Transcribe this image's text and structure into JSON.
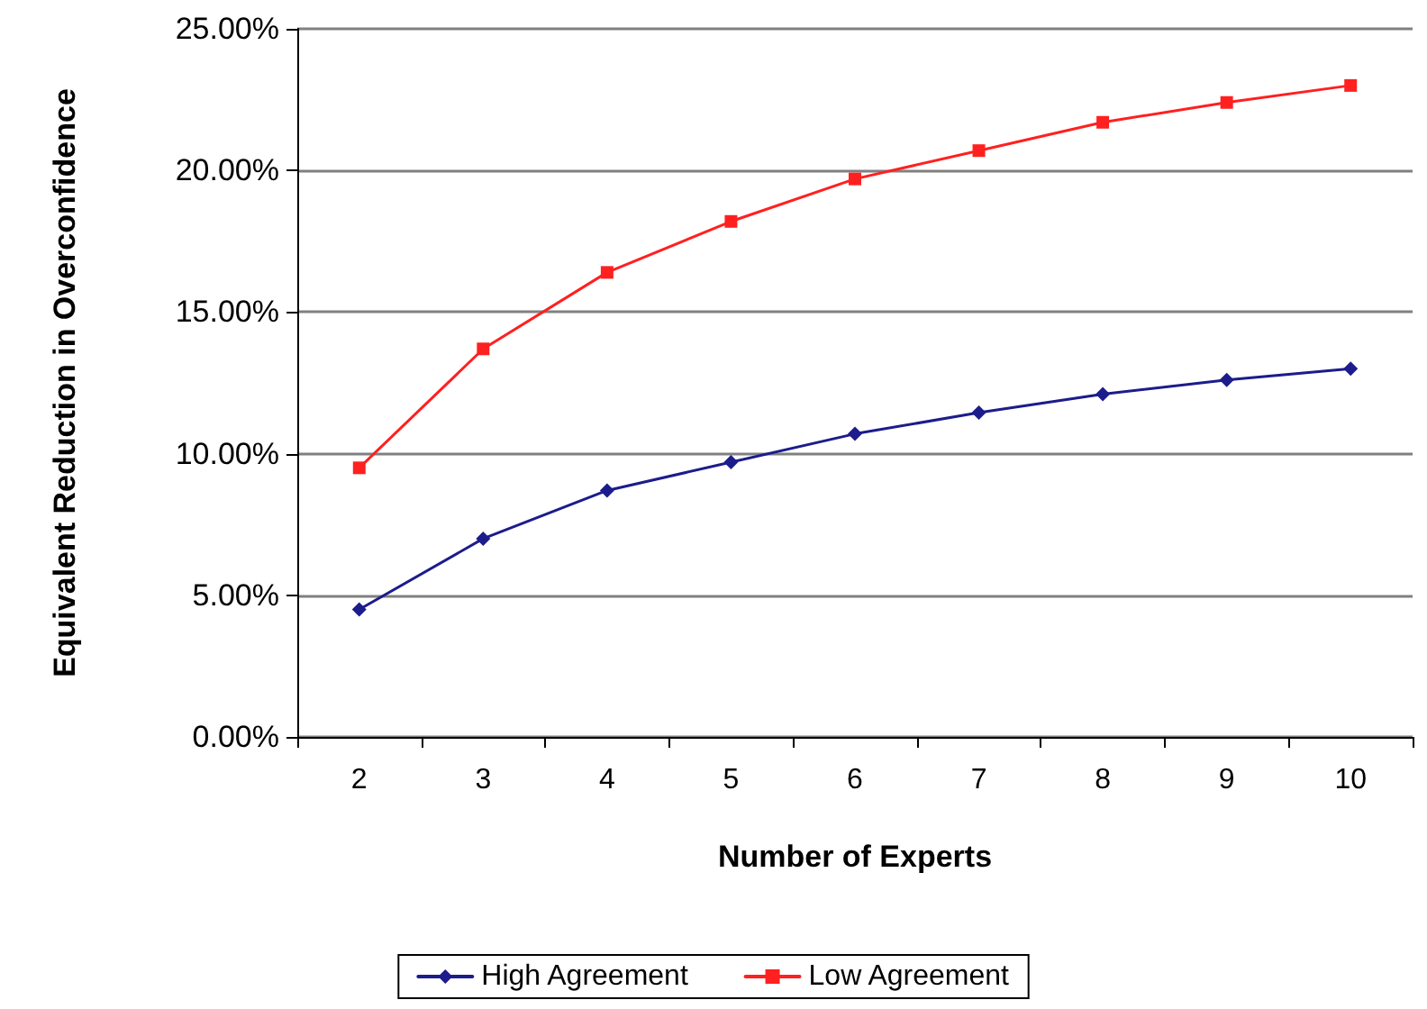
{
  "chart_data": {
    "type": "line",
    "xlabel": "Number of Experts",
    "ylabel": "Equivalent Reduction in Overconfidence",
    "categories": [
      "2",
      "3",
      "4",
      "5",
      "6",
      "7",
      "8",
      "9",
      "10"
    ],
    "series": [
      {
        "name": "High Agreement",
        "color": "#1c1c8c",
        "marker": "diamond",
        "values": [
          4.5,
          7.0,
          8.7,
          9.7,
          10.7,
          11.45,
          12.1,
          12.6,
          13.0
        ]
      },
      {
        "name": "Low Agreement",
        "color": "#ff2020",
        "marker": "square",
        "values": [
          9.5,
          13.7,
          16.4,
          18.2,
          19.7,
          20.7,
          21.7,
          22.4,
          23.0
        ]
      }
    ],
    "ylim": [
      0,
      25
    ],
    "yticks": [
      {
        "value": 0,
        "label": "0.00%"
      },
      {
        "value": 5,
        "label": "5.00%"
      },
      {
        "value": 10,
        "label": "10.00%"
      },
      {
        "value": 15,
        "label": "15.00%"
      },
      {
        "value": 20,
        "label": "20.00%"
      },
      {
        "value": 25,
        "label": "25.00%"
      }
    ],
    "grid": "y",
    "legend": "bottom",
    "line_style": "solid"
  }
}
